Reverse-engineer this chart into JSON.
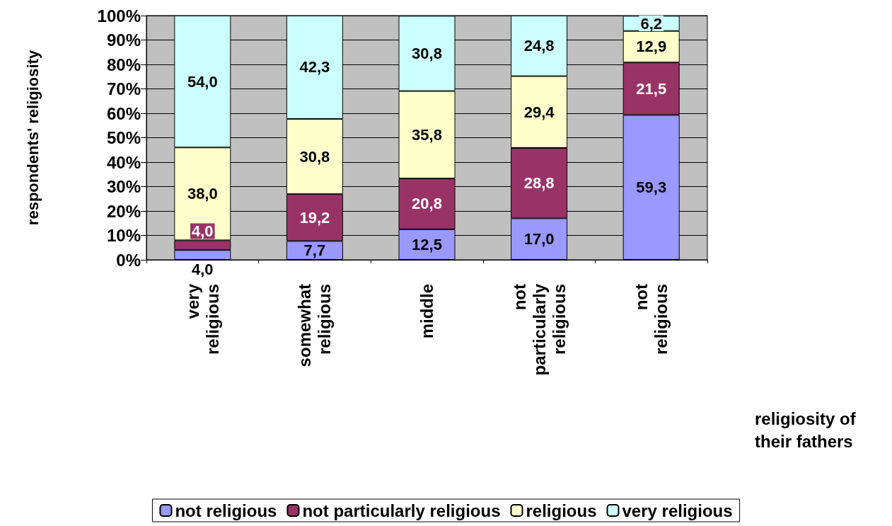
{
  "chart_data": {
    "type": "bar",
    "stacked": true,
    "ylabel": "respondents' religiosity",
    "xlabel": "religiosity of their fathers",
    "categories": [
      "very religious",
      "somewhat religious",
      "middle",
      "not particularly religious",
      "not religious"
    ],
    "series": [
      {
        "name": "not religious",
        "color": "#9999ff",
        "values": [
          4.0,
          7.7,
          12.5,
          17.0,
          59.3
        ],
        "value_labels": [
          "4,0",
          "7,7",
          "12,5",
          "17,0",
          "59,3"
        ]
      },
      {
        "name": "not particularly religious",
        "color": "#993366",
        "values": [
          4.0,
          19.2,
          20.8,
          28.8,
          21.5
        ],
        "value_labels": [
          "4,0",
          "19,2",
          "20,8",
          "28,8",
          "21,5"
        ]
      },
      {
        "name": "religious",
        "color": "#ffffcc",
        "values": [
          38.0,
          30.8,
          35.8,
          29.4,
          12.9
        ],
        "value_labels": [
          "38,0",
          "30,8",
          "35,8",
          "29,4",
          "12,9"
        ]
      },
      {
        "name": "very religious",
        "color": "#ccffff",
        "values": [
          54.0,
          42.3,
          30.8,
          24.8,
          6.2
        ],
        "value_labels": [
          "54,0",
          "42,3",
          "30,8",
          "24,8",
          "6,2"
        ]
      }
    ],
    "ylim": [
      0,
      100
    ],
    "yticks": [
      {
        "value": 0,
        "label": "0%"
      },
      {
        "value": 10,
        "label": "10%"
      },
      {
        "value": 20,
        "label": "20%"
      },
      {
        "value": 30,
        "label": "30%"
      },
      {
        "value": 40,
        "label": "40%"
      },
      {
        "value": 50,
        "label": "50%"
      },
      {
        "value": 60,
        "label": "60%"
      },
      {
        "value": 70,
        "label": "70%"
      },
      {
        "value": 80,
        "label": "80%"
      },
      {
        "value": 90,
        "label": "90%"
      },
      {
        "value": 100,
        "label": "100%"
      }
    ],
    "grid": "y",
    "legend": "bottom"
  }
}
